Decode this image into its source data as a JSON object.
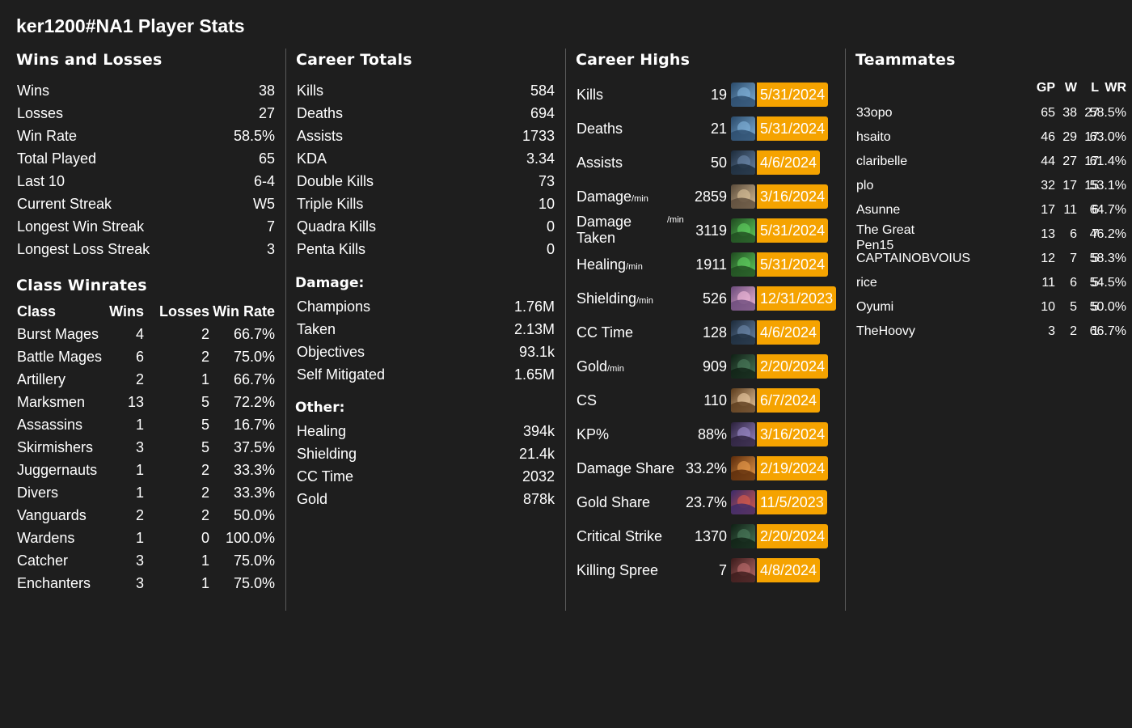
{
  "page_title": "ker1200#NA1 Player Stats",
  "wins_losses": {
    "heading": "Wins and Losses",
    "rows": [
      {
        "label": "Wins",
        "value": "38"
      },
      {
        "label": "Losses",
        "value": "27"
      },
      {
        "label": "Win Rate",
        "value": "58.5%"
      },
      {
        "label": "Total Played",
        "value": "65"
      },
      {
        "label": "Last 10",
        "value": "6-4"
      },
      {
        "label": "Current Streak",
        "value": "W5"
      },
      {
        "label": "Longest Win Streak",
        "value": "7"
      },
      {
        "label": "Longest Loss Streak",
        "value": "3"
      }
    ]
  },
  "class_winrates": {
    "heading": "Class Winrates",
    "columns": [
      "Class",
      "Wins",
      "Losses",
      "Win Rate"
    ],
    "rows": [
      {
        "class": "Burst Mages",
        "wins": "4",
        "losses": "2",
        "win_rate": "66.7%"
      },
      {
        "class": "Battle Mages",
        "wins": "6",
        "losses": "2",
        "win_rate": "75.0%"
      },
      {
        "class": "Artillery",
        "wins": "2",
        "losses": "1",
        "win_rate": "66.7%"
      },
      {
        "class": "Marksmen",
        "wins": "13",
        "losses": "5",
        "win_rate": "72.2%"
      },
      {
        "class": "Assassins",
        "wins": "1",
        "losses": "5",
        "win_rate": "16.7%"
      },
      {
        "class": "Skirmishers",
        "wins": "3",
        "losses": "5",
        "win_rate": "37.5%"
      },
      {
        "class": "Juggernauts",
        "wins": "1",
        "losses": "2",
        "win_rate": "33.3%"
      },
      {
        "class": "Divers",
        "wins": "1",
        "losses": "2",
        "win_rate": "33.3%"
      },
      {
        "class": "Vanguards",
        "wins": "2",
        "losses": "2",
        "win_rate": "50.0%"
      },
      {
        "class": "Wardens",
        "wins": "1",
        "losses": "0",
        "win_rate": "100.0%"
      },
      {
        "class": "Catcher",
        "wins": "3",
        "losses": "1",
        "win_rate": "75.0%"
      },
      {
        "class": "Enchanters",
        "wins": "3",
        "losses": "1",
        "win_rate": "75.0%"
      }
    ]
  },
  "career_totals": {
    "heading": "Career Totals",
    "rows": [
      {
        "label": "Kills",
        "value": "584"
      },
      {
        "label": "Deaths",
        "value": "694"
      },
      {
        "label": "Assists",
        "value": "1733"
      },
      {
        "label": "KDA",
        "value": "3.34"
      },
      {
        "label": "Double Kills",
        "value": "73"
      },
      {
        "label": "Triple Kills",
        "value": "10"
      },
      {
        "label": "Quadra Kills",
        "value": "0"
      },
      {
        "label": "Penta Kills",
        "value": "0"
      }
    ],
    "damage_heading": "Damage:",
    "damage_rows": [
      {
        "label": "Champions",
        "value": "1.76M"
      },
      {
        "label": "Taken",
        "value": "2.13M"
      },
      {
        "label": "Objectives",
        "value": "93.1k"
      },
      {
        "label": "Self Mitigated",
        "value": "1.65M"
      }
    ],
    "other_heading": "Other:",
    "other_rows": [
      {
        "label": "Healing",
        "value": "394k"
      },
      {
        "label": "Shielding",
        "value": "21.4k"
      },
      {
        "label": "CC Time",
        "value": "2032"
      },
      {
        "label": "Gold",
        "value": "878k"
      }
    ]
  },
  "career_highs": {
    "heading": "Career Highs",
    "permin_suffix": "/min",
    "rows": [
      {
        "label": "Kills",
        "suffix": "",
        "value": "19",
        "date": "5/31/2024",
        "icon": "champion-portrait-blue-icon",
        "colors": [
          "#2a4a6a",
          "#7fb0d8"
        ]
      },
      {
        "label": "Deaths",
        "suffix": "",
        "value": "21",
        "date": "5/31/2024",
        "icon": "champion-portrait-blue-icon",
        "colors": [
          "#2a4a6a",
          "#7fb0d8"
        ]
      },
      {
        "label": "Assists",
        "suffix": "",
        "value": "50",
        "date": "4/6/2024",
        "icon": "champion-portrait-dark-icon",
        "colors": [
          "#1c2a3a",
          "#6a86a8"
        ]
      },
      {
        "label": "Damage",
        "suffix": "/min",
        "value": "2859",
        "date": "3/16/2024",
        "icon": "champion-portrait-gold-icon",
        "colors": [
          "#5a4a3a",
          "#d8c098"
        ]
      },
      {
        "label": "Damage Taken",
        "suffix": "/min",
        "value": "3119",
        "date": "5/31/2024",
        "icon": "champion-portrait-green-icon",
        "colors": [
          "#1f4a1f",
          "#5fd05f"
        ]
      },
      {
        "label": "Healing",
        "suffix": "/min",
        "value": "1911",
        "date": "5/31/2024",
        "icon": "champion-portrait-green-icon",
        "colors": [
          "#1f4a1f",
          "#5fd05f"
        ]
      },
      {
        "label": "Shielding",
        "suffix": "/min",
        "value": "526",
        "date": "12/31/2023",
        "icon": "champion-portrait-pink-icon",
        "colors": [
          "#6a4a7a",
          "#f0b8d8"
        ]
      },
      {
        "label": "CC Time",
        "suffix": "",
        "value": "128",
        "date": "4/6/2024",
        "icon": "champion-portrait-dark-icon",
        "colors": [
          "#1c2a3a",
          "#6a86a8"
        ]
      },
      {
        "label": "Gold",
        "suffix": "/min",
        "value": "909",
        "date": "2/20/2024",
        "icon": "champion-portrait-green-dark-icon",
        "colors": [
          "#0f1f14",
          "#4a7a5a"
        ]
      },
      {
        "label": "CS",
        "suffix": "",
        "value": "110",
        "date": "6/7/2024",
        "icon": "champion-portrait-tan-icon",
        "colors": [
          "#5a3a1a",
          "#e8c8a0"
        ]
      },
      {
        "label": "KP%",
        "suffix": "",
        "value": "88%",
        "date": "3/16/2024",
        "icon": "champion-portrait-violet-icon",
        "colors": [
          "#2a1f3a",
          "#9a88c8"
        ]
      },
      {
        "label": "Damage Share",
        "suffix": "",
        "value": "33.2%",
        "date": "2/19/2024",
        "icon": "champion-portrait-orange-icon",
        "colors": [
          "#5a2a0a",
          "#e89a4a"
        ]
      },
      {
        "label": "Gold Share",
        "suffix": "",
        "value": "23.7%",
        "date": "11/5/2023",
        "icon": "champion-portrait-red-icon",
        "colors": [
          "#3a2a6a",
          "#d85a4a"
        ]
      },
      {
        "label": "Critical Strike",
        "suffix": "",
        "value": "1370",
        "date": "2/20/2024",
        "icon": "champion-portrait-green-dark-icon",
        "colors": [
          "#0f1f14",
          "#4a7a5a"
        ]
      },
      {
        "label": "Killing Spree",
        "suffix": "",
        "value": "7",
        "date": "4/8/2024",
        "icon": "champion-portrait-crimson-icon",
        "colors": [
          "#3a1a1a",
          "#b86a6a"
        ]
      }
    ]
  },
  "teammates": {
    "heading": "Teammates",
    "columns": {
      "gp": "GP",
      "w": "W",
      "l": "L",
      "wr": "WR"
    },
    "rows": [
      {
        "name": "33opo",
        "gp": "65",
        "w": "38",
        "l": "27",
        "wr": "58.5%"
      },
      {
        "name": "hsaito",
        "gp": "46",
        "w": "29",
        "l": "17",
        "wr": "63.0%"
      },
      {
        "name": "claribelle",
        "gp": "44",
        "w": "27",
        "l": "17",
        "wr": "61.4%"
      },
      {
        "name": "plo",
        "gp": "32",
        "w": "17",
        "l": "15",
        "wr": "53.1%"
      },
      {
        "name": "Asunne",
        "gp": "17",
        "w": "11",
        "l": "6",
        "wr": "64.7%"
      },
      {
        "name": "The Great Pen15",
        "gp": "13",
        "w": "6",
        "l": "7",
        "wr": "46.2%"
      },
      {
        "name": "CAPTAINOBVOIUS",
        "gp": "12",
        "w": "7",
        "l": "5",
        "wr": "58.3%"
      },
      {
        "name": "rice",
        "gp": "11",
        "w": "6",
        "l": "5",
        "wr": "54.5%"
      },
      {
        "name": "Oyumi",
        "gp": "10",
        "w": "5",
        "l": "5",
        "wr": "50.0%"
      },
      {
        "name": "TheHoovy",
        "gp": "3",
        "w": "2",
        "l": "1",
        "wr": "66.7%"
      }
    ]
  }
}
